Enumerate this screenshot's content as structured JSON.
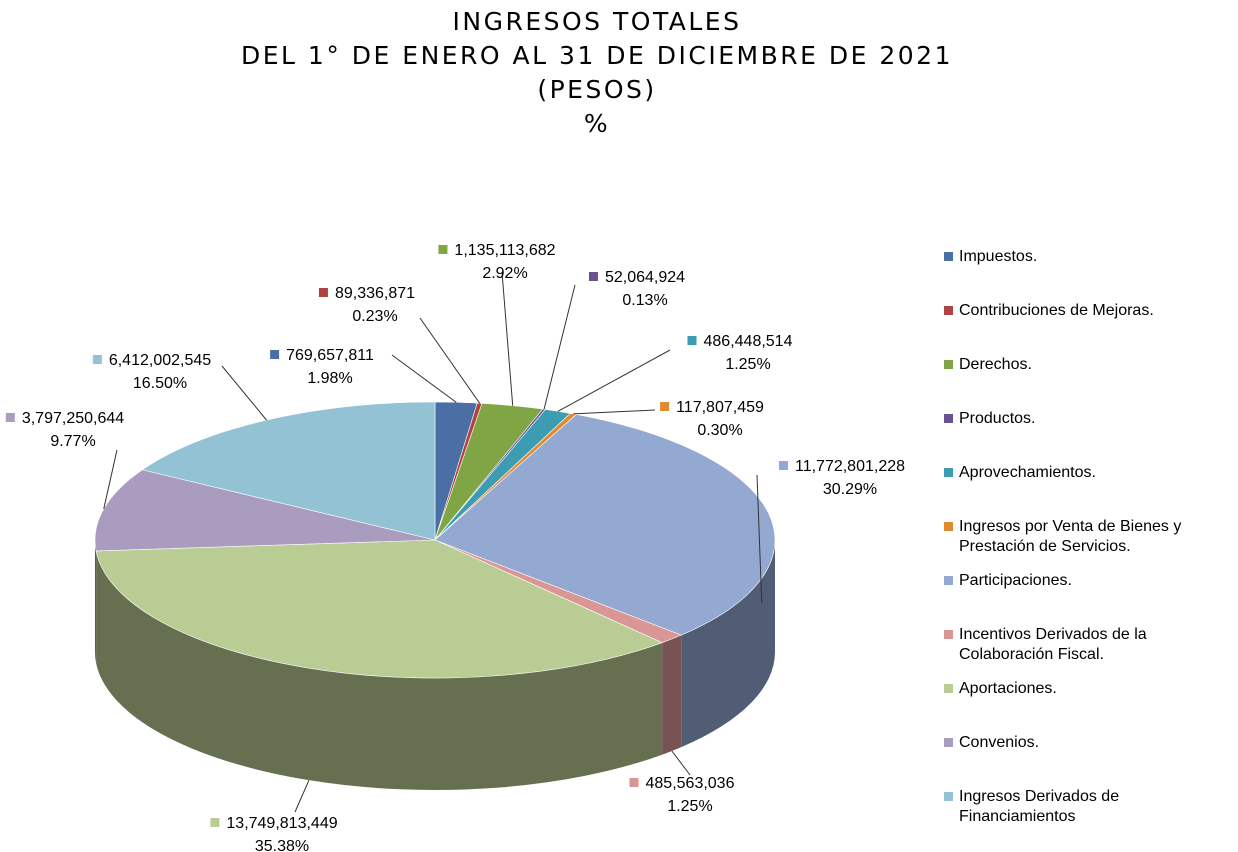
{
  "chart_data": {
    "type": "pie",
    "title_lines": [
      "INGRESOS TOTALES",
      "DEL 1° DE ENERO AL 31 DE DICIEMBRE DE 2021",
      "(PESOS)",
      "%"
    ],
    "series": [
      {
        "name": "Impuestos.",
        "color": "#4a6fa5",
        "value": 769657811,
        "value_label": "769,657,811",
        "percent": 1.98,
        "percent_label": "1.98%"
      },
      {
        "name": "Contribuciones de Mejoras.",
        "color": "#b04242",
        "value": 89336871,
        "value_label": "89,336,871",
        "percent": 0.23,
        "percent_label": "0.23%"
      },
      {
        "name": "Derechos.",
        "color": "#80a545",
        "value": 1135113682,
        "value_label": "1,135,113,682",
        "percent": 2.92,
        "percent_label": "2.92%"
      },
      {
        "name": "Productos.",
        "color": "#6b5190",
        "value": 52064924,
        "value_label": "52,064,924",
        "percent": 0.13,
        "percent_label": "0.13%"
      },
      {
        "name": "Aprovechamientos.",
        "color": "#3b9cb2",
        "value": 486448514,
        "value_label": "486,448,514",
        "percent": 1.25,
        "percent_label": "1.25%"
      },
      {
        "name": "Ingresos por Venta de Bienes y Prestación de Servicios.",
        "color": "#e08a32",
        "value": 117807459,
        "value_label": "117,807,459",
        "percent": 0.3,
        "percent_label": "0.30%"
      },
      {
        "name": "Participaciones.",
        "color": "#94a9d2",
        "value": 11772801228,
        "value_label": "11,772,801,228",
        "percent": 30.29,
        "percent_label": "30.29%"
      },
      {
        "name": "Incentivos Derivados de la Colaboración Fiscal.",
        "color": "#d99694",
        "value": 485563036,
        "value_label": "485,563,036",
        "percent": 1.25,
        "percent_label": "1.25%"
      },
      {
        "name": "Aportaciones.",
        "color": "#b9cc94",
        "value": 13749813449,
        "value_label": "13,749,813,449",
        "percent": 35.38,
        "percent_label": "35.38%"
      },
      {
        "name": "Convenios.",
        "color": "#a99cbf",
        "value": 3797250644,
        "value_label": "3,797,250,644",
        "percent": 9.77,
        "percent_label": "9.77%"
      },
      {
        "name": "Ingresos Derivados de Financiamientos",
        "color": "#93c2d4",
        "value": 6412002545,
        "value_label": "6,412,002,545",
        "percent": 16.5,
        "percent_label": "16.50%"
      }
    ]
  }
}
